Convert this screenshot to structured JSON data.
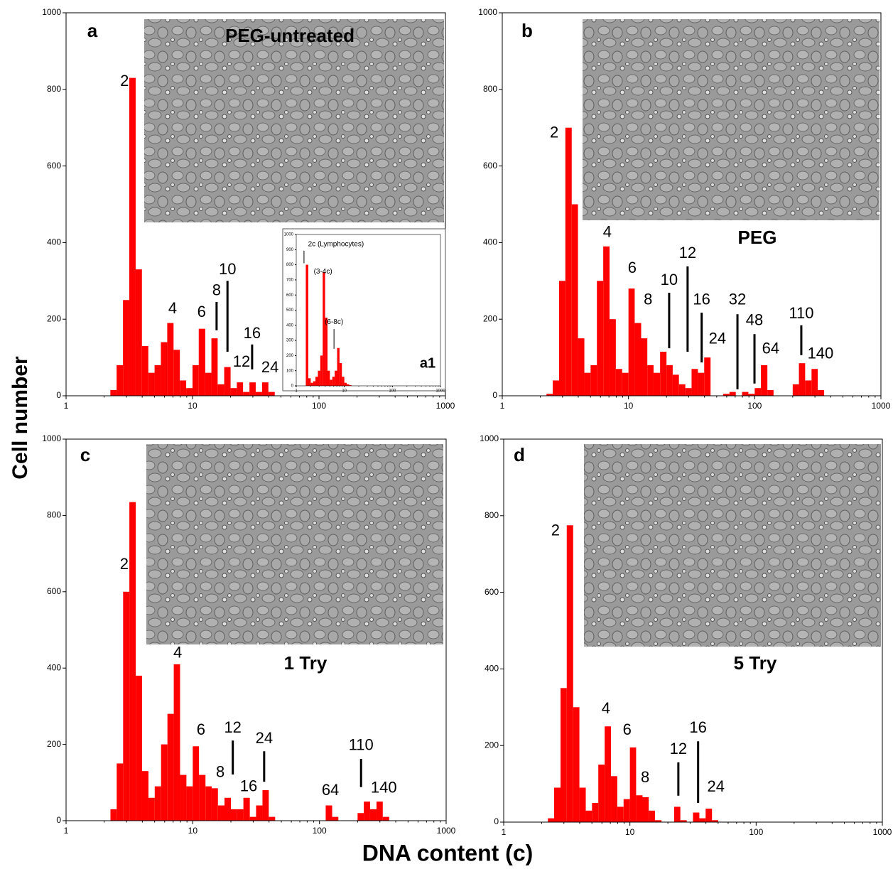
{
  "y_label": "Cell number",
  "x_label": "DNA content (c)",
  "chart_data": [
    {
      "type": "histogram",
      "panel": "a",
      "inset_label": "PEG-untreated",
      "color": "#ff0000",
      "xscale": "log",
      "xlim": [
        1,
        1000
      ],
      "ylim": [
        0,
        1000
      ],
      "xticks": [
        1,
        10,
        100,
        1000
      ],
      "yticks": [
        0,
        200,
        400,
        600,
        800,
        1000
      ],
      "bins": [
        2.24,
        2.51,
        2.82,
        3.16,
        3.55,
        3.98,
        4.47,
        5.01,
        5.62,
        6.31,
        7.08,
        7.94,
        8.91,
        10,
        11.2,
        12.6,
        14.1,
        15.8,
        17.8,
        20,
        22.4,
        25.1,
        28.2,
        31.6,
        35.5,
        39.8,
        44.7,
        50.1,
        56.2,
        63.1,
        70.8,
        79.4,
        89.1,
        100,
        112,
        126,
        141,
        158,
        178,
        200,
        224,
        251,
        282,
        316,
        355
      ],
      "counts": [
        15,
        80,
        250,
        830,
        330,
        130,
        60,
        80,
        140,
        190,
        120,
        40,
        20,
        80,
        175,
        60,
        150,
        30,
        75,
        20,
        35,
        10,
        35,
        10,
        35,
        10,
        0,
        0,
        0,
        0,
        0,
        0,
        0,
        0,
        0,
        0,
        0,
        0,
        0,
        0,
        0,
        0,
        0,
        0
      ],
      "annotations": [
        {
          "text": "2",
          "x": 2.9,
          "y": 820
        },
        {
          "text": "4",
          "x": 6.96,
          "y": 226
        },
        {
          "text": "6",
          "x": 11.8,
          "y": 217
        },
        {
          "text": "8",
          "x": 15.5,
          "y": 273,
          "line": [
            245,
            171
          ]
        },
        {
          "text": "10",
          "x": 18.9,
          "y": 328,
          "line": [
            300,
            115
          ]
        },
        {
          "text": "12",
          "x": 24.4,
          "y": 87
        },
        {
          "text": "16",
          "x": 29.6,
          "y": 161,
          "line": [
            134,
            69
          ]
        },
        {
          "text": "24",
          "x": 41,
          "y": 72
        }
      ],
      "inset": {
        "type": "histogram",
        "label": "a1",
        "color": "#ff0000",
        "xscale": "log",
        "xlim": [
          1,
          1000
        ],
        "ylim": [
          0,
          1000
        ],
        "xticks": [
          1,
          10,
          100,
          1000
        ],
        "yticks": [
          0,
          100,
          200,
          300,
          400,
          500,
          600,
          700,
          800,
          900,
          1000
        ],
        "bins": [
          1.41,
          1.58,
          1.78,
          2,
          2.24,
          2.51,
          2.82,
          3.16,
          3.55,
          3.98,
          4.47,
          5.01,
          5.62,
          6.31,
          7.08,
          7.94,
          8.91,
          10,
          11.2,
          12.6,
          14.1
        ],
        "counts": [
          0,
          800,
          50,
          20,
          30,
          60,
          100,
          200,
          750,
          450,
          100,
          40,
          60,
          100,
          250,
          150,
          60,
          20,
          10,
          5
        ],
        "annotations": [
          {
            "text": "2c (Lymphocytes)",
            "x": 6.7,
            "y": 935,
            "line": [
              893,
              810
            ],
            "line_x": 1.45
          },
          {
            "text": "(3-4c)",
            "x": 3.6,
            "y": 755
          },
          {
            "text": "(6-8c)",
            "x": 6.1,
            "y": 421,
            "line": [
              375,
              245
            ]
          }
        ]
      }
    },
    {
      "type": "histogram",
      "panel": "b",
      "inset_label": "PEG",
      "color": "#ff0000",
      "xscale": "log",
      "xlim": [
        1,
        1000
      ],
      "ylim": [
        0,
        1000
      ],
      "xticks": [
        1,
        10,
        100,
        1000
      ],
      "yticks": [
        0,
        200,
        400,
        600,
        800,
        1000
      ],
      "bins": [
        2.24,
        2.51,
        2.82,
        3.16,
        3.55,
        3.98,
        4.47,
        5.01,
        5.62,
        6.31,
        7.08,
        7.94,
        8.91,
        10,
        11.2,
        12.6,
        14.1,
        15.8,
        17.8,
        20,
        22.4,
        25.1,
        28.2,
        31.6,
        35.5,
        39.8,
        44.7,
        50.1,
        56.2,
        63.1,
        70.8,
        79.4,
        89.1,
        100,
        112,
        126,
        141,
        158,
        178,
        200,
        224,
        251,
        282,
        316,
        355
      ],
      "counts": [
        5,
        40,
        300,
        700,
        500,
        150,
        60,
        80,
        300,
        390,
        200,
        70,
        60,
        280,
        190,
        150,
        80,
        60,
        115,
        80,
        55,
        30,
        20,
        70,
        60,
        100,
        0,
        0,
        5,
        10,
        0,
        10,
        5,
        20,
        80,
        15,
        0,
        0,
        0,
        30,
        85,
        40,
        70,
        15
      ],
      "annotations": [
        {
          "text": "2",
          "x": 2.58,
          "y": 685
        },
        {
          "text": "4",
          "x": 6.8,
          "y": 425
        },
        {
          "text": "6",
          "x": 10.7,
          "y": 332
        },
        {
          "text": "8",
          "x": 14.3,
          "y": 249
        },
        {
          "text": "10",
          "x": 21,
          "y": 300,
          "line": [
            269,
            124
          ]
        },
        {
          "text": "12",
          "x": 29.4,
          "y": 371,
          "line": [
            338,
            115
          ]
        },
        {
          "text": "16",
          "x": 38,
          "y": 249,
          "line": [
            217,
            87
          ]
        },
        {
          "text": "24",
          "x": 50.7,
          "y": 147
        },
        {
          "text": "32",
          "x": 73,
          "y": 249,
          "line": [
            213,
            17
          ]
        },
        {
          "text": "48",
          "x": 99.6,
          "y": 195,
          "line": [
            161,
            32
          ]
        },
        {
          "text": "64",
          "x": 134,
          "y": 121
        },
        {
          "text": "110",
          "x": 234,
          "y": 213,
          "line": [
            184,
            106
          ]
        },
        {
          "text": "140",
          "x": 332,
          "y": 108
        }
      ]
    },
    {
      "type": "histogram",
      "panel": "c",
      "inset_label": "1 Try",
      "color": "#ff0000",
      "xscale": "log",
      "xlim": [
        1,
        1000
      ],
      "ylim": [
        0,
        1000
      ],
      "xticks": [
        1,
        10,
        100,
        1000
      ],
      "yticks": [
        0,
        200,
        400,
        600,
        800,
        1000
      ],
      "bins": [
        2.24,
        2.51,
        2.82,
        3.16,
        3.55,
        3.98,
        4.47,
        5.01,
        5.62,
        6.31,
        7.08,
        7.94,
        8.91,
        10,
        11.2,
        12.6,
        14.1,
        15.8,
        17.8,
        20,
        22.4,
        25.1,
        28.2,
        31.6,
        35.5,
        39.8,
        44.7,
        50.1,
        56.2,
        63.1,
        70.8,
        79.4,
        89.1,
        100,
        112,
        126,
        141,
        158,
        178,
        200,
        224,
        251,
        282,
        316,
        355
      ],
      "counts": [
        30,
        150,
        600,
        835,
        380,
        130,
        60,
        90,
        200,
        280,
        410,
        120,
        90,
        195,
        120,
        90,
        85,
        40,
        60,
        30,
        30,
        60,
        10,
        40,
        80,
        10,
        0,
        0,
        0,
        0,
        0,
        0,
        0,
        0,
        40,
        10,
        0,
        0,
        0,
        20,
        50,
        30,
        50,
        10
      ],
      "annotations": [
        {
          "text": "2",
          "x": 2.88,
          "y": 670
        },
        {
          "text": "4",
          "x": 7.6,
          "y": 438
        },
        {
          "text": "6",
          "x": 11.6,
          "y": 236
        },
        {
          "text": "8",
          "x": 16.5,
          "y": 125
        },
        {
          "text": "12",
          "x": 20.7,
          "y": 242,
          "line": [
            210,
            121
          ]
        },
        {
          "text": "16",
          "x": 27.6,
          "y": 88
        },
        {
          "text": "24",
          "x": 36.6,
          "y": 214,
          "line": [
            182,
            102
          ]
        },
        {
          "text": "64",
          "x": 122,
          "y": 78
        },
        {
          "text": "110",
          "x": 213,
          "y": 196,
          "line": [
            162,
            88
          ]
        },
        {
          "text": "140",
          "x": 322,
          "y": 84
        }
      ]
    },
    {
      "type": "histogram",
      "panel": "d",
      "inset_label": "5 Try",
      "color": "#ff0000",
      "xscale": "log",
      "xlim": [
        1,
        1000
      ],
      "ylim": [
        0,
        1000
      ],
      "xticks": [
        1,
        10,
        100,
        1000
      ],
      "yticks": [
        0,
        200,
        400,
        600,
        800,
        1000
      ],
      "bins": [
        2.24,
        2.51,
        2.82,
        3.16,
        3.55,
        3.98,
        4.47,
        5.01,
        5.62,
        6.31,
        7.08,
        7.94,
        8.91,
        10,
        11.2,
        12.6,
        14.1,
        15.8,
        17.8,
        20,
        22.4,
        25.1,
        28.2,
        31.6,
        35.5,
        39.8,
        44.7,
        50.1,
        56.2,
        63.1,
        70.8,
        79.4,
        89.1,
        100,
        112,
        126,
        141,
        158,
        178,
        200,
        224,
        251,
        282,
        316,
        355
      ],
      "counts": [
        10,
        90,
        350,
        775,
        300,
        90,
        30,
        50,
        150,
        250,
        120,
        40,
        60,
        195,
        70,
        65,
        30,
        5,
        0,
        0,
        40,
        5,
        0,
        25,
        10,
        35,
        5,
        0,
        0,
        0,
        0,
        0,
        0,
        0,
        0,
        0,
        0,
        0,
        0,
        0,
        0,
        0,
        0,
        0
      ],
      "annotations": [
        {
          "text": "2",
          "x": 2.57,
          "y": 759
        },
        {
          "text": "4",
          "x": 6.45,
          "y": 295
        },
        {
          "text": "6",
          "x": 9.5,
          "y": 239
        },
        {
          "text": "8",
          "x": 13.2,
          "y": 115
        },
        {
          "text": "12",
          "x": 24.2,
          "y": 189,
          "line": [
            156,
            69
          ]
        },
        {
          "text": "16",
          "x": 34.7,
          "y": 245,
          "line": [
            211,
            50
          ]
        },
        {
          "text": "24",
          "x": 48,
          "y": 91
        }
      ]
    }
  ]
}
